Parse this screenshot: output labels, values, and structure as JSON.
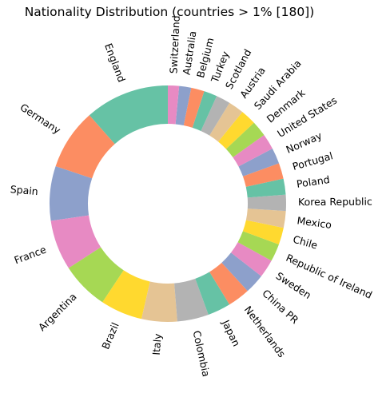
{
  "chart_data": {
    "type": "pie",
    "style": "donut",
    "title": "Nationality Distribution (countries > 1% [180])",
    "start_angle_deg": 90,
    "direction": "counterclockwise",
    "legend": "none",
    "categories": [
      "England",
      "Germany",
      "Spain",
      "France",
      "Argentina",
      "Brazil",
      "Italy",
      "Colombia",
      "Japan",
      "Netherlands",
      "China PR",
      "Sweden",
      "Republic of Ireland",
      "Chile",
      "Mexico",
      "Korea Republic",
      "Poland",
      "Portugal",
      "Norway",
      "United States",
      "Denmark",
      "Saudi Arabia",
      "Austria",
      "Scotland",
      "Turkey",
      "Belgium",
      "Australia",
      "Switzerland"
    ],
    "values": [
      1662,
      1198,
      1072,
      984,
      937,
      827,
      699,
      618,
      453,
      439,
      392,
      358,
      348,
      333,
      330,
      317,
      313,
      312,
      311,
      309,
      308,
      307,
      306,
      280,
      260,
      260,
      236,
      220
    ],
    "colors": [
      "#66c2a5",
      "#fc8d62",
      "#8da0cb",
      "#e78ac3",
      "#a6d854",
      "#ffd92f",
      "#e5c494",
      "#b3b3b3"
    ]
  }
}
